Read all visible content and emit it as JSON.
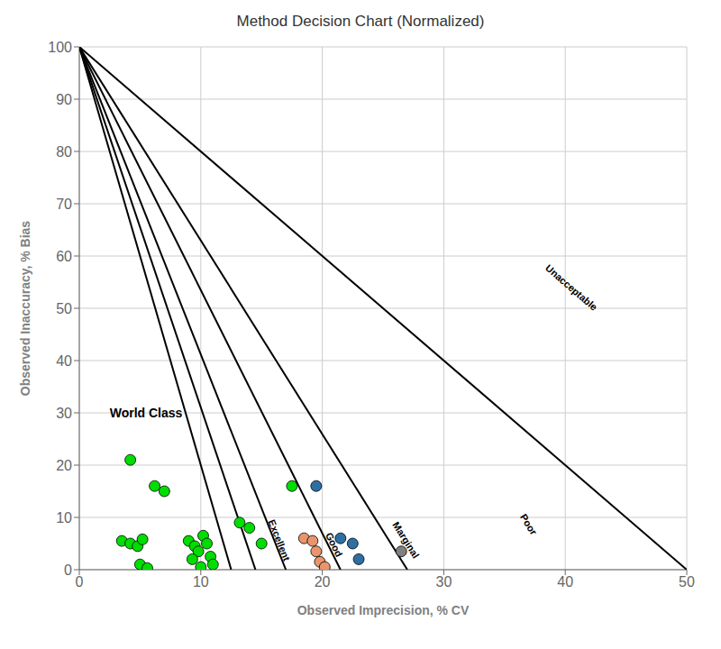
{
  "chart_data": {
    "type": "scatter",
    "title": "Method Decision Chart (Normalized)",
    "xlabel": "Observed Imprecision, % CV",
    "ylabel": "Observed Inaccuracy, % Bias",
    "xlim": [
      0,
      50
    ],
    "ylim": [
      0,
      100
    ],
    "xticks": [
      0,
      10,
      20,
      30,
      40,
      50
    ],
    "yticks": [
      0,
      10,
      20,
      30,
      40,
      50,
      60,
      70,
      80,
      90,
      100
    ],
    "grid": true,
    "series": [
      {
        "type": "line",
        "color": "#000000",
        "x": [
          0,
          12.5
        ],
        "values": [
          100,
          0
        ]
      },
      {
        "type": "line",
        "color": "#000000",
        "x": [
          0,
          14.5
        ],
        "values": [
          100,
          0
        ]
      },
      {
        "type": "line",
        "color": "#000000",
        "x": [
          0,
          17.0
        ],
        "values": [
          100,
          0
        ]
      },
      {
        "type": "line",
        "color": "#000000",
        "x": [
          0,
          21.5
        ],
        "values": [
          100,
          0
        ]
      },
      {
        "type": "line",
        "color": "#000000",
        "x": [
          0,
          27.0
        ],
        "values": [
          100,
          0
        ]
      },
      {
        "type": "line",
        "color": "#000000",
        "x": [
          0,
          50.0
        ],
        "values": [
          100,
          0
        ]
      },
      {
        "type": "scatter",
        "color": "#00dd00",
        "x": [
          3.5,
          4.2,
          4.8,
          5.2,
          5.0,
          5.6,
          6.2,
          7.0,
          9.0,
          9.5,
          10.2,
          10.5,
          9.8,
          9.3,
          10.8,
          11.0,
          10.0,
          13.2,
          14.0,
          15.0,
          17.5,
          4.2
        ],
        "values": [
          5.5,
          5.0,
          4.5,
          5.8,
          1.0,
          0.3,
          16.0,
          15.0,
          5.5,
          4.5,
          6.5,
          5.0,
          3.5,
          2.0,
          2.5,
          1.0,
          0.5,
          9.0,
          8.0,
          5.0,
          16.0,
          21.0
        ]
      },
      {
        "type": "scatter",
        "color": "#e8956d",
        "x": [
          18.5,
          19.2,
          19.8,
          20.2,
          19.5
        ],
        "values": [
          6.0,
          5.5,
          1.5,
          0.5,
          3.5
        ]
      },
      {
        "type": "scatter",
        "color": "#2e6fa3",
        "x": [
          19.5,
          21.5,
          22.5,
          23.0
        ],
        "values": [
          16.0,
          6.0,
          5.0,
          2.0
        ]
      },
      {
        "type": "scatter",
        "color": "#808080",
        "x": [
          26.5
        ],
        "values": [
          3.5
        ]
      }
    ],
    "annotations": [
      {
        "text": "World Class",
        "x": 2.5,
        "y": 30
      },
      {
        "text": "Excellent",
        "x": 15.8,
        "y": 9.5
      },
      {
        "text": "Good",
        "x": 20.5,
        "y": 7.0
      },
      {
        "text": "Marginal",
        "x": 26.0,
        "y": 9.0
      },
      {
        "text": "Poor",
        "x": 36.5,
        "y": 10.5
      },
      {
        "text": "Unacceptable",
        "x": 38.5,
        "y": 58.0
      }
    ]
  }
}
